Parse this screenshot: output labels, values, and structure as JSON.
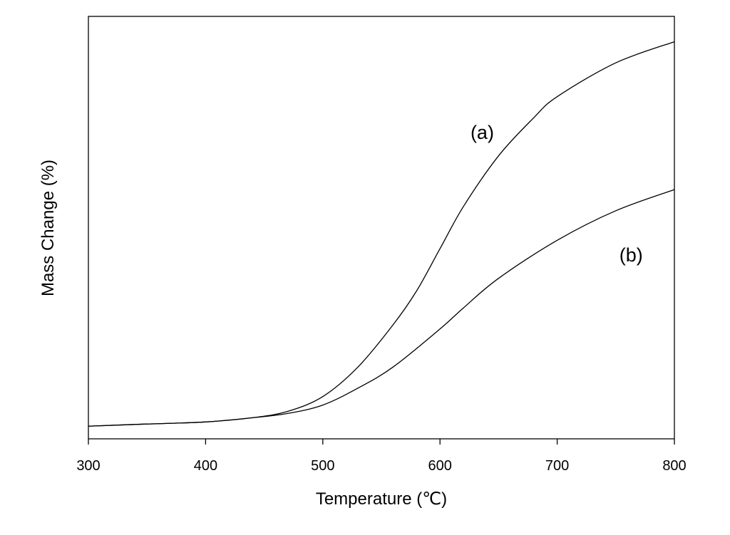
{
  "chart_data": {
    "type": "line",
    "xlabel": "Temperature (℃)",
    "ylabel": "Mass Change (%)",
    "xlim": [
      300,
      800
    ],
    "ylim": [
      0,
      100
    ],
    "x_ticks": [
      300,
      400,
      500,
      600,
      700,
      800
    ],
    "y_ticks_labeled": false,
    "grid": false,
    "legend": "none",
    "series": [
      {
        "name": "(a)",
        "label_at": [
          626,
          71
        ],
        "x": [
          300,
          350,
          400,
          440,
          470,
          500,
          530,
          560,
          580,
          600,
          620,
          650,
          680,
          700,
          750,
          800
        ],
        "y": [
          3,
          3.5,
          4,
          5,
          6.5,
          10,
          17,
          27,
          35,
          45,
          55,
          67,
          76,
          81,
          89,
          94
        ]
      },
      {
        "name": "(b)",
        "label_at": [
          753,
          42
        ],
        "x": [
          300,
          350,
          400,
          440,
          470,
          500,
          530,
          560,
          600,
          620,
          650,
          700,
          750,
          800
        ],
        "y": [
          3,
          3.5,
          4,
          5,
          6,
          8,
          12,
          17,
          26,
          31,
          38,
          47,
          54,
          59
        ]
      }
    ]
  }
}
